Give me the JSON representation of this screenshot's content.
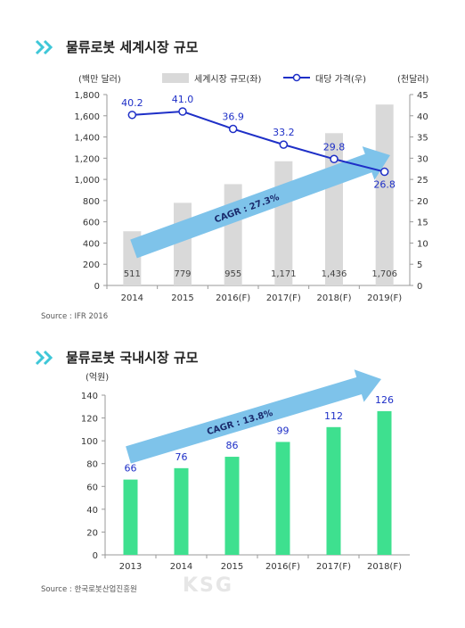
{
  "section1": {
    "title": "물류로봇 세계시장 규모",
    "source": "Source : IFR 2016"
  },
  "section2": {
    "title": "물류로봇 국내시장 규모",
    "source": "Source : 한국로봇산업진흥원"
  },
  "watermark": "KSG",
  "colors": {
    "accent": "#3ec7d8",
    "bar1": "#d9d9d9",
    "line": "#1e2fc7",
    "bar2": "#3ee08f",
    "arrow": "#7ec3ea"
  },
  "chart_data": [
    {
      "type": "bar",
      "categories": [
        "2014",
        "2015",
        "2016(F)",
        "2017(F)",
        "2018(F)",
        "2019(F)"
      ],
      "y_unit_label": "(백만 달러)",
      "y2_unit_label": "(천달러)",
      "ylim": [
        0,
        1800
      ],
      "yticks": [
        "0",
        "200",
        "400",
        "600",
        "800",
        "1,000",
        "1,200",
        "1,400",
        "1,600",
        "1,800"
      ],
      "y2lim": [
        0,
        45
      ],
      "y2ticks": [
        "0",
        "5",
        "10",
        "15",
        "20",
        "25",
        "30",
        "35",
        "40",
        "45"
      ],
      "series": [
        {
          "name": "세계시장 규모(좌)",
          "type": "bar",
          "axis": "left",
          "values": [
            511,
            779,
            955,
            1171,
            1436,
            1706
          ],
          "labels": [
            "511",
            "779",
            "955",
            "1,171",
            "1,436",
            "1,706"
          ]
        },
        {
          "name": "대당 가격(우)",
          "type": "line",
          "axis": "right",
          "values": [
            40.2,
            41.0,
            36.9,
            33.2,
            29.8,
            26.8
          ],
          "labels": [
            "40.2",
            "41.0",
            "36.9",
            "33.2",
            "29.8",
            "26.8"
          ]
        }
      ],
      "annotation": "CAGR : 27.3%",
      "grid": false,
      "legend_position": "top"
    },
    {
      "type": "bar",
      "categories": [
        "2013",
        "2014",
        "2015",
        "2016(F)",
        "2017(F)",
        "2018(F)"
      ],
      "y_unit_label": "(억원)",
      "ylim": [
        0,
        140
      ],
      "yticks": [
        "0",
        "20",
        "40",
        "60",
        "80",
        "100",
        "120",
        "140"
      ],
      "series": [
        {
          "type": "bar",
          "values": [
            66,
            76,
            86,
            99,
            112,
            126
          ],
          "labels": [
            "66",
            "76",
            "86",
            "99",
            "112",
            "126"
          ]
        }
      ],
      "annotation": "CAGR : 13.8%",
      "grid": false
    }
  ]
}
